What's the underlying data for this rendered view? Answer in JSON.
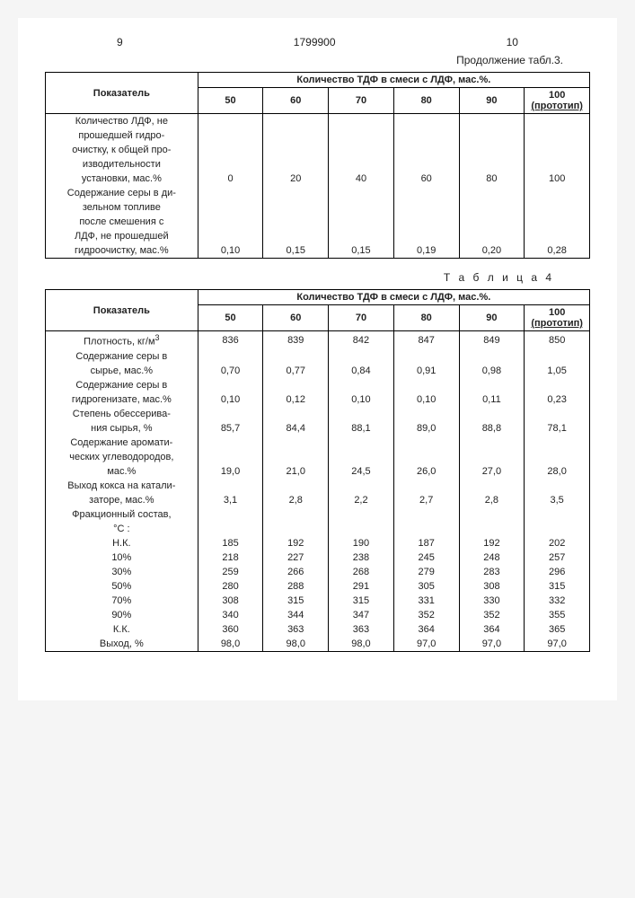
{
  "header": {
    "left_page": "9",
    "doc_number": "1799900",
    "right_page": "10"
  },
  "continuation": "Продолжение табл.3.",
  "table4_caption": "Т а б л и ц а  4",
  "shared_header": {
    "label": "Показатель",
    "group_header": "Количество ТДФ в смеси с ЛДФ, мас.%.",
    "columns": [
      "50",
      "60",
      "70",
      "80",
      "90",
      "100"
    ],
    "prototype": "(прототип)"
  },
  "table3": {
    "rows": [
      {
        "label": "Количество ЛДФ, не\nпрошедшей гидро-\nочистку, к общей про-\nизводительности\nустановки, мас.%",
        "values": [
          "0",
          "20",
          "40",
          "60",
          "80",
          "100"
        ]
      },
      {
        "label": "Содержание серы в ди-\nзельном топливе\nпосле смешения с\nЛДФ, не прошедшей\nгидроочистку, мас.%",
        "values": [
          "0,10",
          "0,15",
          "0,15",
          "0,19",
          "0,20",
          "0,28"
        ]
      }
    ]
  },
  "table4": {
    "rows": [
      {
        "label": "Плотность, кг/м",
        "sup": "3",
        "values": [
          "836",
          "839",
          "842",
          "847",
          "849",
          "850"
        ]
      },
      {
        "label": "Содержание серы в\nсырье, мас.%",
        "values": [
          "0,70",
          "0,77",
          "0,84",
          "0,91",
          "0,98",
          "1,05"
        ]
      },
      {
        "label": "Содержание серы в\nгидрогенизате, мас.%",
        "values": [
          "0,10",
          "0,12",
          "0,10",
          "0,10",
          "0,11",
          "0,23"
        ]
      },
      {
        "label": "Степень обессерива-\nния сырья, %",
        "values": [
          "85,7",
          "84,4",
          "88,1",
          "89,0",
          "88,8",
          "78,1"
        ]
      },
      {
        "label": "Содержание аромати-\nческих углеводородов,\nмас.%",
        "values": [
          "19,0",
          "21,0",
          "24,5",
          "26,0",
          "27,0",
          "28,0"
        ]
      },
      {
        "label": "Выход кокса на катали-\nзаторе, мас.%",
        "values": [
          "3,1",
          "2,8",
          "2,2",
          "2,7",
          "2,8",
          "3,5"
        ]
      },
      {
        "label": "Фракционный состав,\n°С :",
        "values": [
          "",
          "",
          "",
          "",
          "",
          ""
        ]
      },
      {
        "label": "Н.К.",
        "values": [
          "185",
          "192",
          "190",
          "187",
          "192",
          "202"
        ]
      },
      {
        "label": "10%",
        "values": [
          "218",
          "227",
          "238",
          "245",
          "248",
          "257"
        ]
      },
      {
        "label": "30%",
        "values": [
          "259",
          "266",
          "268",
          "279",
          "283",
          "296"
        ]
      },
      {
        "label": "50%",
        "values": [
          "280",
          "288",
          "291",
          "305",
          "308",
          "315"
        ]
      },
      {
        "label": "70%",
        "values": [
          "308",
          "315",
          "315",
          "331",
          "330",
          "332"
        ]
      },
      {
        "label": "90%",
        "values": [
          "340",
          "344",
          "347",
          "352",
          "352",
          "355"
        ]
      },
      {
        "label": "К.К.",
        "values": [
          "360",
          "363",
          "363",
          "364",
          "364",
          "365"
        ]
      },
      {
        "label": "Выход, %",
        "values": [
          "98,0",
          "98,0",
          "98,0",
          "97,0",
          "97,0",
          "97,0"
        ]
      }
    ]
  }
}
